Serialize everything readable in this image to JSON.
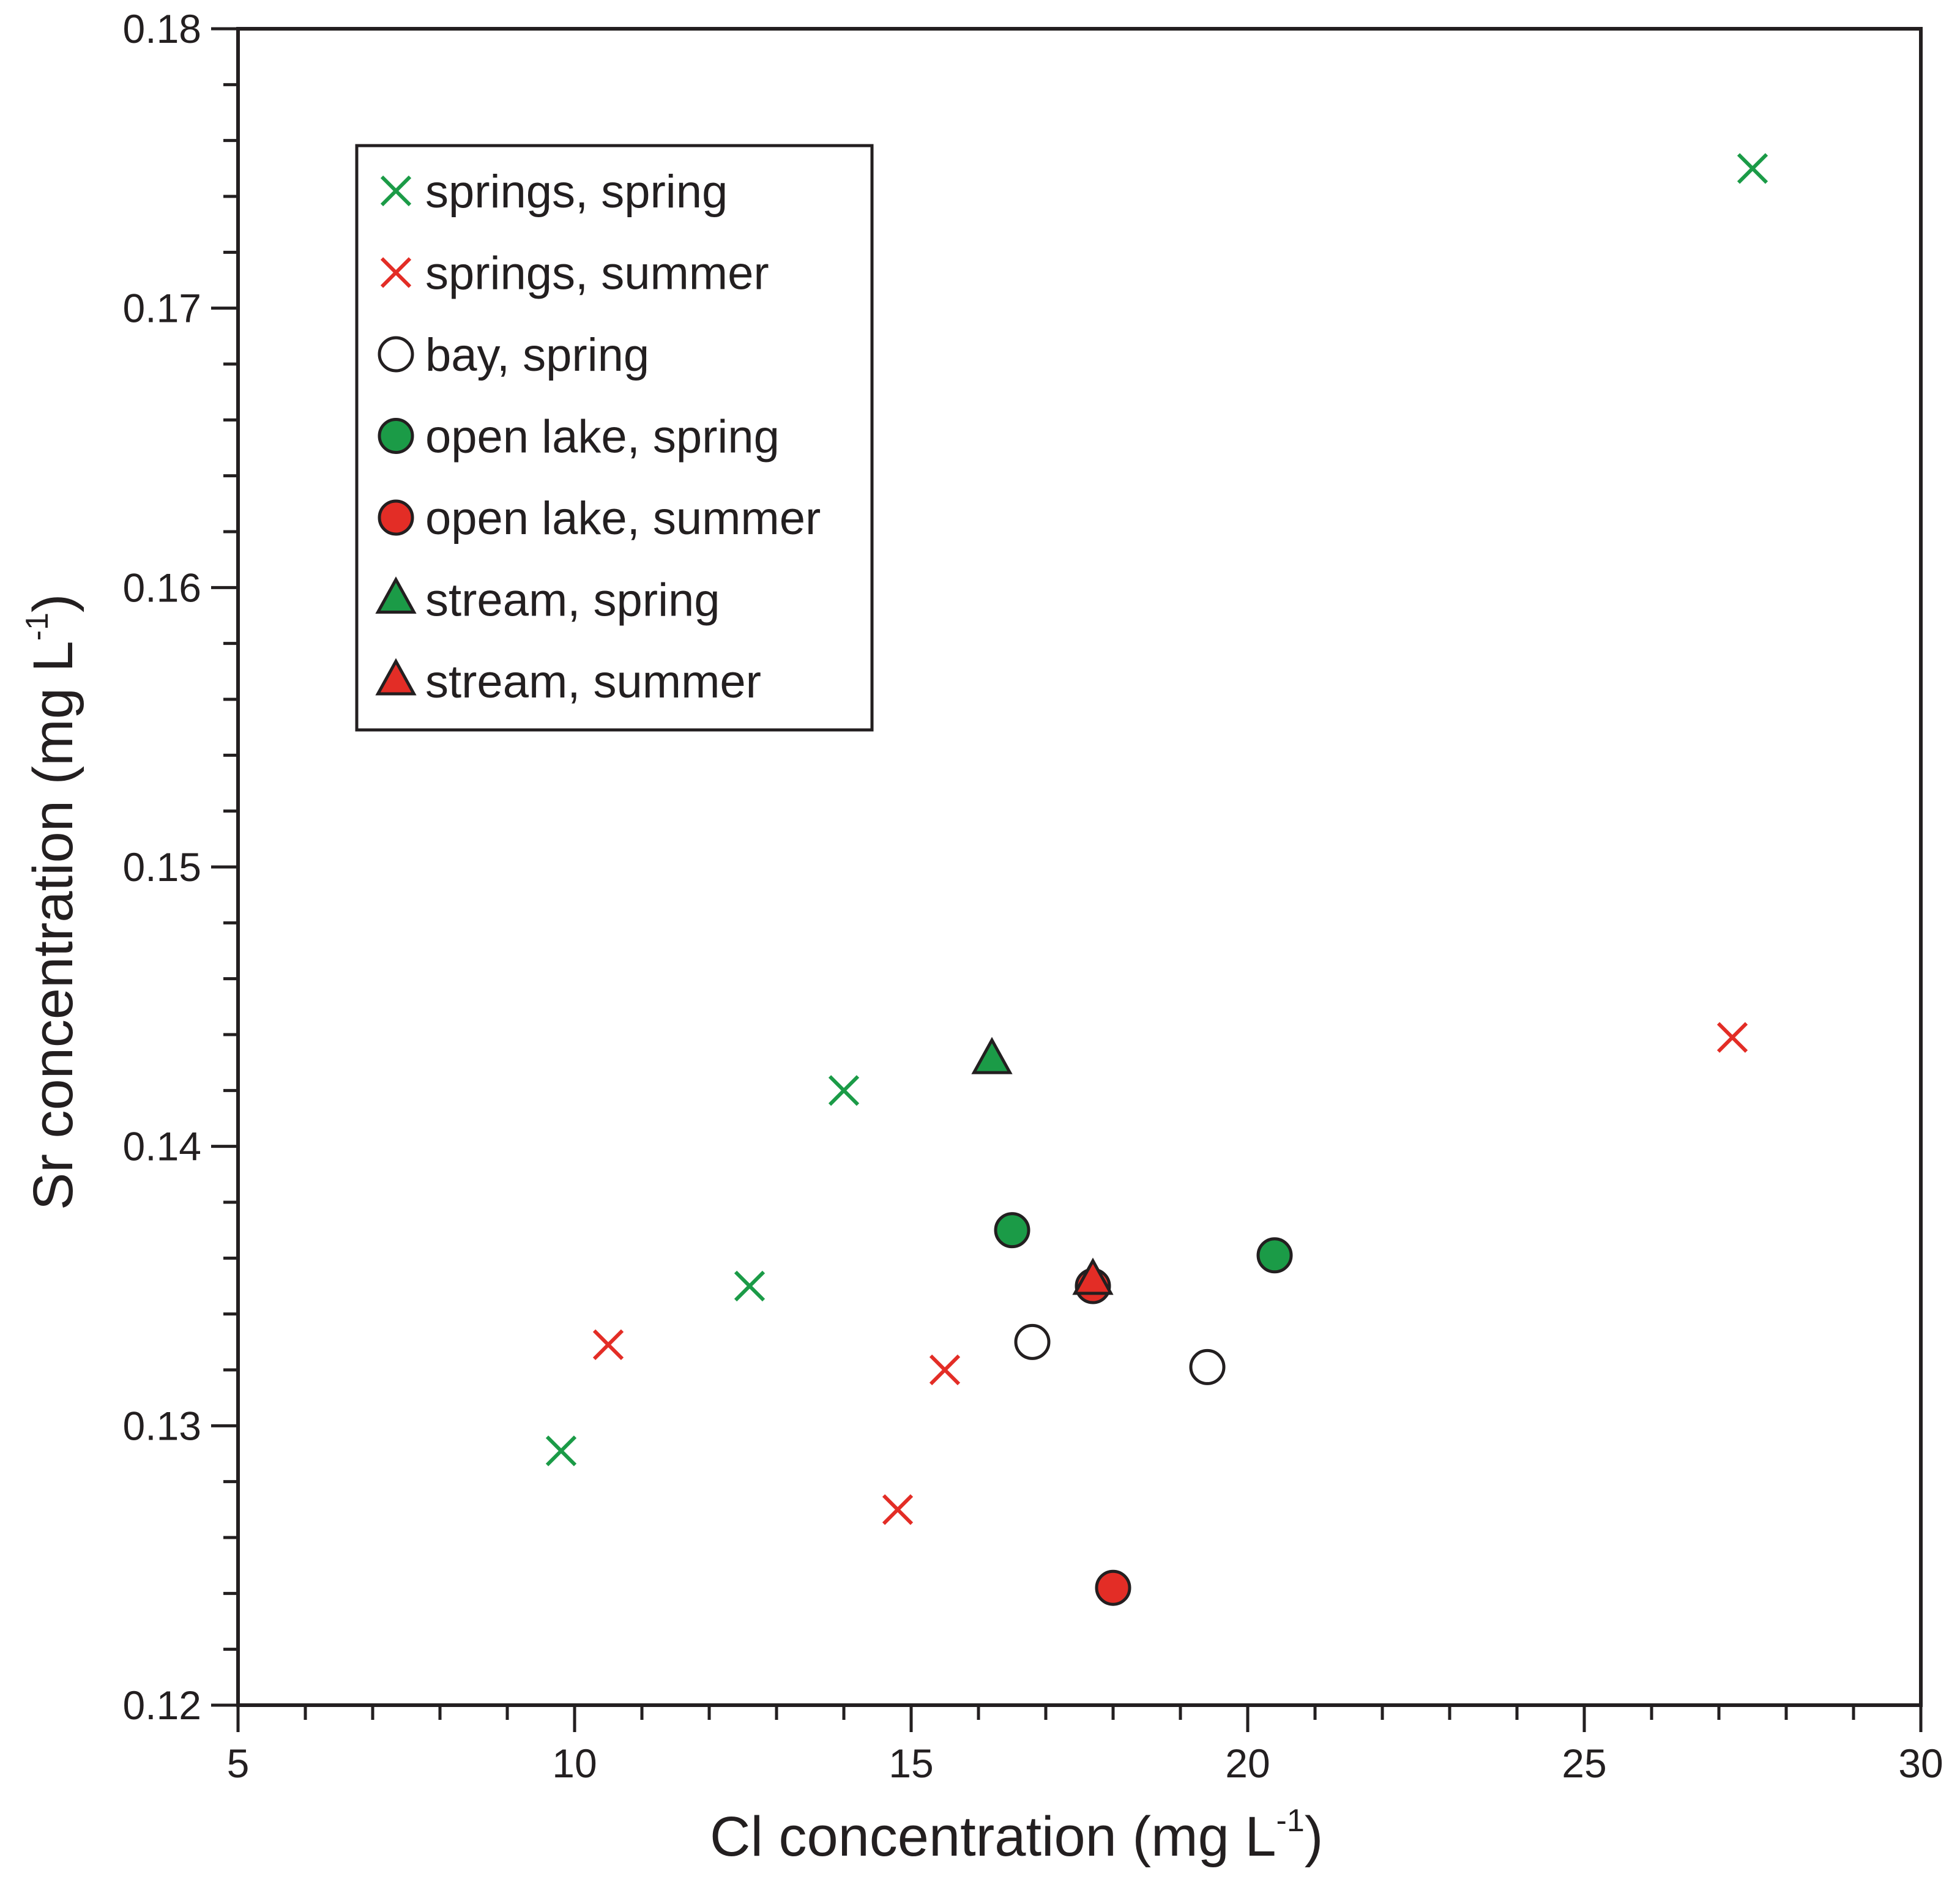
{
  "chart_data": {
    "type": "scatter",
    "title": "",
    "xlabel": "Cl concentration (mg L",
    "ylabel": "Sr concentration (mg L",
    "unit_superscript": "-1",
    "unit_close": ")",
    "xlim": [
      5,
      30
    ],
    "ylim": [
      0.12,
      0.18
    ],
    "xticks": [
      5,
      10,
      15,
      20,
      25,
      30
    ],
    "xtick_labels": [
      "5",
      "10",
      "15",
      "20",
      "25",
      "30"
    ],
    "yticks": [
      0.12,
      0.13,
      0.14,
      0.15,
      0.16,
      0.17,
      0.18
    ],
    "ytick_labels": [
      "0.12",
      "0.13",
      "0.14",
      "0.15",
      "0.16",
      "0.17",
      "0.18"
    ],
    "x_minor_step": 1,
    "y_minor_step": 0.002,
    "grid": false,
    "legend_position": "top-left",
    "colors": {
      "green": "#1b9b47",
      "red": "#e32d26",
      "white": "#ffffff",
      "outline": "#231f20"
    },
    "series": [
      {
        "name": "springs, spring",
        "marker": "x",
        "color": "#1b9b47",
        "points": [
          [
            9.8,
            0.1291
          ],
          [
            12.6,
            0.135
          ],
          [
            14.0,
            0.142
          ],
          [
            27.5,
            0.175
          ]
        ]
      },
      {
        "name": "springs, summer",
        "marker": "x",
        "color": "#e32d26",
        "points": [
          [
            10.5,
            0.1329
          ],
          [
            14.8,
            0.127
          ],
          [
            15.5,
            0.132
          ],
          [
            27.2,
            0.1439
          ]
        ]
      },
      {
        "name": "bay, spring",
        "marker": "circle",
        "color": "#ffffff",
        "points": [
          [
            16.8,
            0.133
          ],
          [
            19.4,
            0.1321
          ]
        ]
      },
      {
        "name": "open lake, spring",
        "marker": "circle",
        "color": "#1b9b47",
        "points": [
          [
            16.5,
            0.137
          ],
          [
            20.4,
            0.1361
          ]
        ]
      },
      {
        "name": "open lake, summer",
        "marker": "circle",
        "color": "#e32d26",
        "points": [
          [
            17.7,
            0.135
          ],
          [
            18.0,
            0.1242
          ]
        ]
      },
      {
        "name": "stream, spring",
        "marker": "triangle",
        "color": "#1b9b47",
        "points": [
          [
            16.2,
            0.1431
          ]
        ]
      },
      {
        "name": "stream, summer",
        "marker": "triangle",
        "color": "#e32d26",
        "points": [
          [
            17.7,
            0.1352
          ]
        ]
      }
    ]
  }
}
